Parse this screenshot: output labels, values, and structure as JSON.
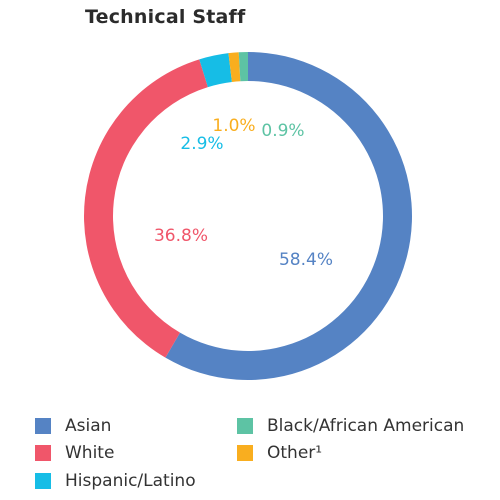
{
  "chart_data": {
    "type": "pie",
    "title": "Technical Staff",
    "donut": true,
    "categories": [
      "Asian",
      "White",
      "Hispanic/Latino",
      "Other¹",
      "Black/African American"
    ],
    "values": [
      58.4,
      36.8,
      2.9,
      1.0,
      0.9
    ],
    "value_labels": [
      "58.4%",
      "36.8%",
      "2.9%",
      "1.0%",
      "0.9%"
    ],
    "colors": [
      "#5583C4",
      "#F0566A",
      "#16BDE6",
      "#F9AE1F",
      "#5DC3A4"
    ],
    "legend": [
      "Asian",
      "Black/African American",
      "White",
      "Other¹",
      "Hispanic/Latino"
    ],
    "legend_colors": [
      "#5583C4",
      "#5DC3A4",
      "#F0566A",
      "#F9AE1F",
      "#16BDE6"
    ],
    "legend_placement": "bottom"
  }
}
